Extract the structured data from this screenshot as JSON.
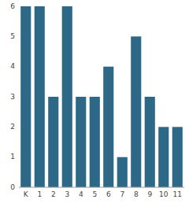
{
  "chart_data": {
    "type": "bar",
    "categories": [
      "K",
      "1",
      "2",
      "3",
      "4",
      "5",
      "6",
      "7",
      "8",
      "9",
      "10",
      "11"
    ],
    "values": [
      6,
      6,
      3,
      6,
      3,
      3,
      4,
      1,
      5,
      3,
      2,
      2
    ],
    "color": "#2e6887",
    "ylim": [
      0,
      6
    ],
    "yticks": [
      0,
      1,
      2,
      3,
      4,
      5,
      6
    ],
    "grid": false
  }
}
